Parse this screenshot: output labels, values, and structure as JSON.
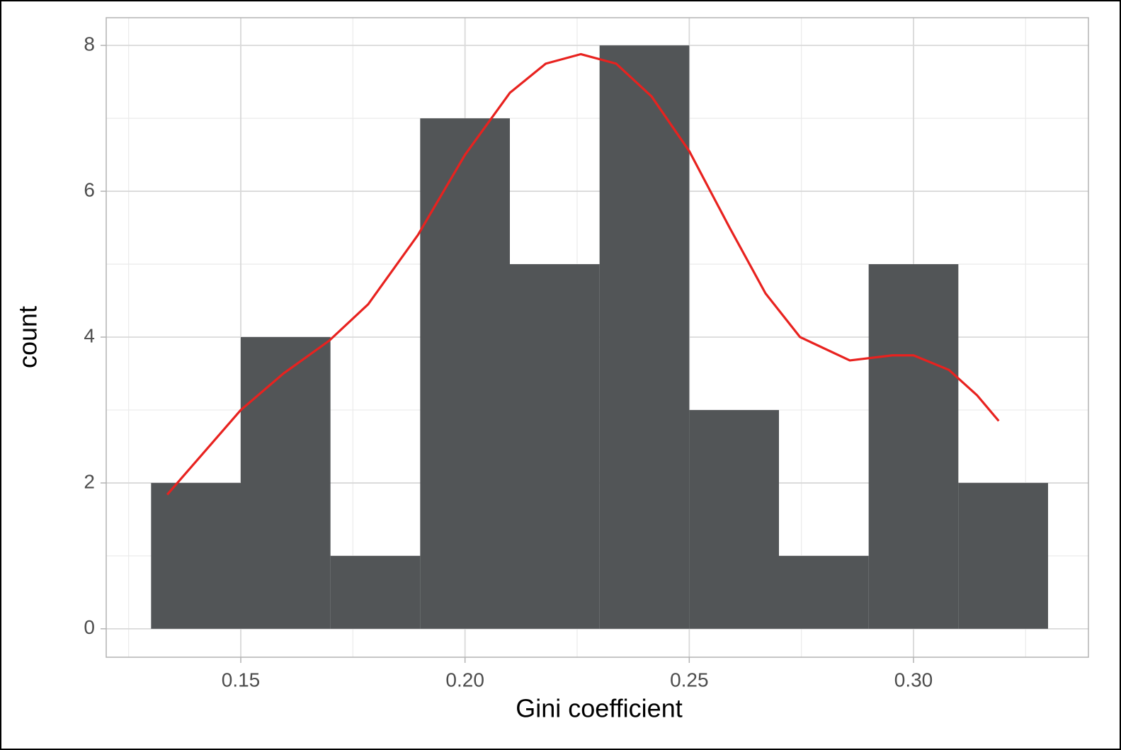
{
  "chart_data": {
    "type": "histogram",
    "xlabel": "Gini coefficient",
    "ylabel": "count",
    "bins": [
      0.13,
      0.15,
      0.17,
      0.19,
      0.21,
      0.23,
      0.25,
      0.27,
      0.29,
      0.31,
      0.33
    ],
    "values": [
      2,
      4,
      1,
      7,
      5,
      8,
      3,
      1,
      5,
      2
    ],
    "color": "#525557",
    "density": {
      "color": "#e8221f",
      "x": [
        0.1336,
        0.15,
        0.1595,
        0.1697,
        0.1784,
        0.1895,
        0.2,
        0.21,
        0.218,
        0.2258,
        0.2337,
        0.2416,
        0.25,
        0.259,
        0.267,
        0.2747,
        0.2858,
        0.2953,
        0.3,
        0.3079,
        0.3142,
        0.319
      ],
      "values": [
        1.84,
        3.0,
        3.5,
        3.95,
        4.45,
        5.4,
        6.5,
        7.35,
        7.75,
        7.88,
        7.75,
        7.3,
        6.55,
        5.5,
        4.6,
        4.0,
        3.68,
        3.75,
        3.75,
        3.55,
        3.2,
        2.85
      ]
    },
    "xlim": [
      0.12,
      0.339
    ],
    "ylim": [
      -0.39,
      8.38
    ],
    "xticks": [
      0.15,
      {
        "value": 0.2,
        "label": "0.20"
      },
      0.25,
      {
        "value": 0.3,
        "label": "0.30"
      }
    ],
    "yticks": [
      0,
      2,
      4,
      6,
      8
    ],
    "grid": true,
    "minor_grid": true
  }
}
